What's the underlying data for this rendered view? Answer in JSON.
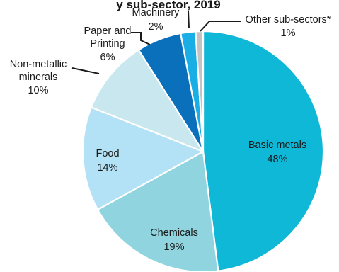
{
  "chart_data": {
    "type": "pie",
    "title_fragment": "y sub-sector, 2019",
    "slices": [
      {
        "name": "Basic metals",
        "value": 48,
        "label_value": "48%",
        "color": "#0fb8d6"
      },
      {
        "name": "Chemicals",
        "value": 19,
        "label_value": "19%",
        "color": "#8fd4df"
      },
      {
        "name": "Food",
        "value": 14,
        "label_value": "14%",
        "color": "#b3e1f5"
      },
      {
        "name": "Non-metallic minerals",
        "value": 10,
        "label_value": "10%",
        "color": "#c8e7ee"
      },
      {
        "name": "Paper and Printing",
        "value": 6,
        "label_value": "6%",
        "color": "#0a70bb"
      },
      {
        "name": "Machinery",
        "value": 2,
        "label_value": "2%",
        "color": "#1aaee6"
      },
      {
        "name": "Other sub-sectors*",
        "value": 1,
        "label_value": "1%",
        "color": "#c3c3c3"
      }
    ]
  }
}
